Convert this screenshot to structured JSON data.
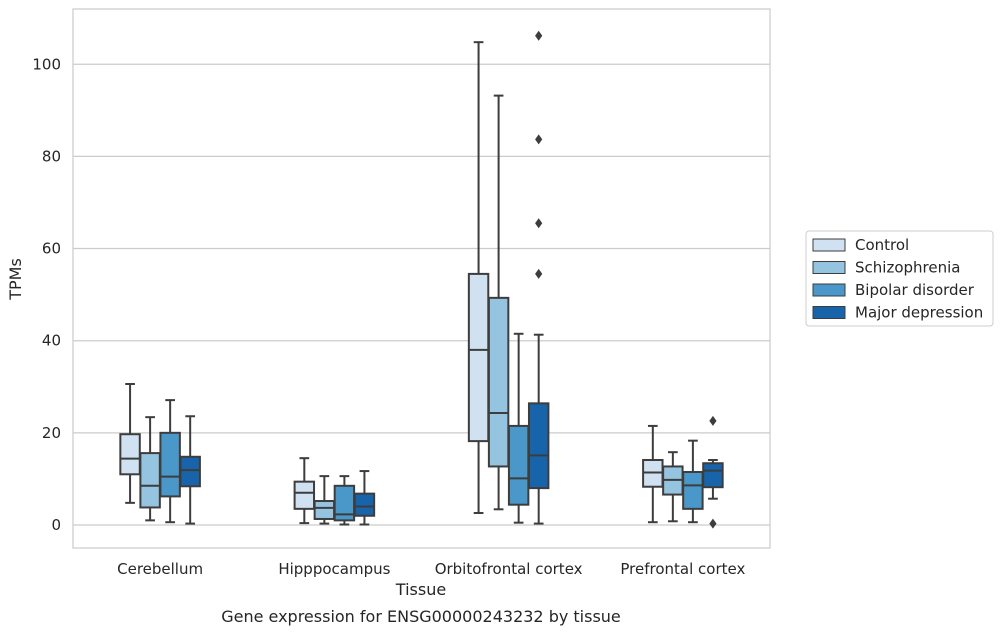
{
  "chart_data": {
    "type": "box",
    "xlabel": "Tissue",
    "ylabel": "TPMs",
    "caption": "Gene expression for ENSG00000243232 by tissue",
    "ylim": [
      -5,
      112
    ],
    "yticks": [
      0,
      20,
      40,
      60,
      80,
      100
    ],
    "grid": "horizontal",
    "legend_position": "right",
    "categories": [
      "Cerebellum",
      "Hipppocampus",
      "Orbitofrontal cortex",
      "Prefrontal cortex"
    ],
    "series": [
      {
        "name": "Control",
        "color": "#d0e1f2",
        "boxes": [
          {
            "whislo": 4.8,
            "q1": 11,
            "med": 14.4,
            "q3": 19.7,
            "whishi": 30.6,
            "fliers": []
          },
          {
            "whislo": 0.4,
            "q1": 3.5,
            "med": 7,
            "q3": 9.4,
            "whishi": 14.5,
            "fliers": []
          },
          {
            "whislo": 2.6,
            "q1": 18.2,
            "med": 38,
            "q3": 54.5,
            "whishi": 104.8,
            "fliers": []
          },
          {
            "whislo": 0.6,
            "q1": 8.3,
            "med": 11.4,
            "q3": 14.1,
            "whishi": 21.5,
            "fliers": []
          }
        ]
      },
      {
        "name": "Schizophrenia",
        "color": "#94c4df",
        "boxes": [
          {
            "whislo": 1,
            "q1": 3.8,
            "med": 8.5,
            "q3": 15.6,
            "whishi": 23.4,
            "fliers": []
          },
          {
            "whislo": 0.3,
            "q1": 1.3,
            "med": 3.7,
            "q3": 5.2,
            "whishi": 10.6,
            "fliers": []
          },
          {
            "whislo": 3.4,
            "q1": 12.7,
            "med": 24.3,
            "q3": 49.3,
            "whishi": 93.2,
            "fliers": []
          },
          {
            "whislo": 0.8,
            "q1": 6.6,
            "med": 9.8,
            "q3": 12.7,
            "whishi": 15.8,
            "fliers": []
          }
        ]
      },
      {
        "name": "Bipolar disorder",
        "color": "#4a98c9",
        "boxes": [
          {
            "whislo": 0.6,
            "q1": 6.2,
            "med": 10.5,
            "q3": 20,
            "whishi": 27.1,
            "fliers": []
          },
          {
            "whislo": 0.1,
            "q1": 1,
            "med": 2.3,
            "q3": 8.5,
            "whishi": 10.6,
            "fliers": []
          },
          {
            "whislo": 0.5,
            "q1": 4.4,
            "med": 10.1,
            "q3": 21.5,
            "whishi": 41.5,
            "fliers": []
          },
          {
            "whislo": 0.6,
            "q1": 3.5,
            "med": 8.6,
            "q3": 11.5,
            "whishi": 18.3,
            "fliers": []
          }
        ]
      },
      {
        "name": "Major depression",
        "color": "#1764ab",
        "boxes": [
          {
            "whislo": 0.3,
            "q1": 8.4,
            "med": 11.9,
            "q3": 14.8,
            "whishi": 23.6,
            "fliers": []
          },
          {
            "whislo": 0.1,
            "q1": 2,
            "med": 4,
            "q3": 6.8,
            "whishi": 11.7,
            "fliers": []
          },
          {
            "whislo": 0.3,
            "q1": 8,
            "med": 15.1,
            "q3": 26.4,
            "whishi": 41.3,
            "fliers": [
              54.5,
              65.5,
              83.7,
              106.2
            ]
          },
          {
            "whislo": 5.7,
            "q1": 8.2,
            "med": 11.8,
            "q3": 13.4,
            "whishi": 14.1,
            "fliers": [
              0.3,
              22.6
            ]
          }
        ]
      }
    ]
  }
}
